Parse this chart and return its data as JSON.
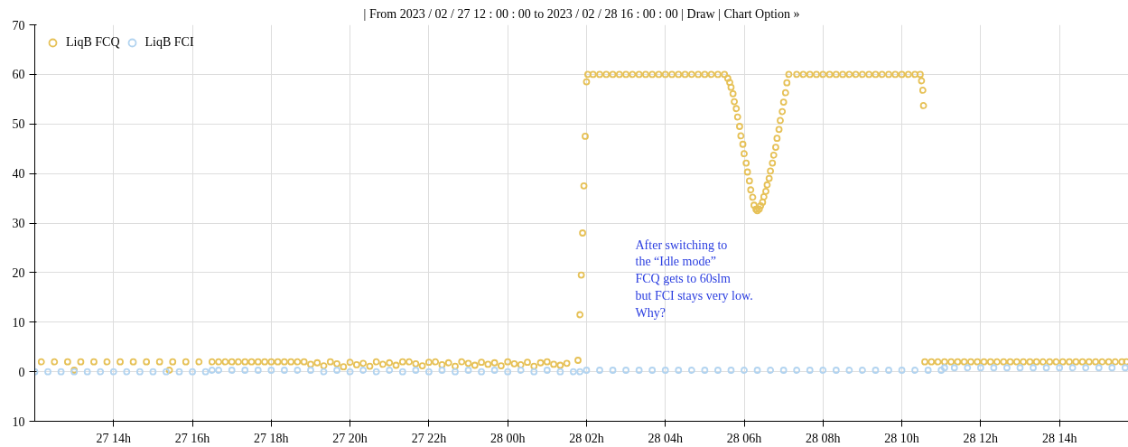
{
  "chart_data": {
    "type": "scatter",
    "annotations": [
      "| From 2023 / 02 / 27 12 : 00 : 00 to 2023 / 02 / 28 16 : 00 : 00 | Draw | Chart Option »",
      "After switching to\nthe “Idle mode”\nFCQ gets to 60slm\nbut FCI stays very low.\nWhy?"
    ],
    "xlim": [
      "2023-02-27T12:00",
      "2023-02-28T15:45"
    ],
    "xticks": [
      {
        "value": "2023-02-27T14:00",
        "label": "27 14h"
      },
      {
        "value": "2023-02-27T16:00",
        "label": "27 16h"
      },
      {
        "value": "2023-02-27T18:00",
        "label": "27 18h"
      },
      {
        "value": "2023-02-27T20:00",
        "label": "27 20h"
      },
      {
        "value": "2023-02-27T22:00",
        "label": "27 22h"
      },
      {
        "value": "2023-02-28T00:00",
        "label": "28 00h"
      },
      {
        "value": "2023-02-28T02:00",
        "label": "28 02h"
      },
      {
        "value": "2023-02-28T04:00",
        "label": "28 04h"
      },
      {
        "value": "2023-02-28T06:00",
        "label": "28 06h"
      },
      {
        "value": "2023-02-28T08:00",
        "label": "28 08h"
      },
      {
        "value": "2023-02-28T10:00",
        "label": "28 10h"
      },
      {
        "value": "2023-02-28T12:00",
        "label": "28 12h"
      },
      {
        "value": "2023-02-28T14:00",
        "label": "28 14h"
      }
    ],
    "ylim": [
      -10,
      70
    ],
    "yticks": [
      {
        "value": -10,
        "label": "10"
      },
      0,
      10,
      20,
      30,
      40,
      50,
      60,
      70
    ],
    "grid": true,
    "legend": "top left",
    "marker": "circle",
    "series": [
      {
        "name": "LiqB FCQ",
        "color": "#e6c157",
        "x": [
          "2023-02-27T12:10",
          "2023-02-27T12:30",
          "2023-02-27T12:50",
          "2023-02-27T13:00",
          "2023-02-27T13:10",
          "2023-02-27T13:30",
          "2023-02-27T13:50",
          "2023-02-27T14:10",
          "2023-02-27T14:30",
          "2023-02-27T14:50",
          "2023-02-27T15:10",
          "2023-02-27T15:25",
          "2023-02-27T15:30",
          "2023-02-27T15:50",
          "2023-02-27T16:10",
          "2023-02-27T16:30",
          "2023-02-27T16:40",
          "2023-02-27T16:50",
          "2023-02-27T17:00",
          "2023-02-27T17:10",
          "2023-02-27T17:20",
          "2023-02-27T17:30",
          "2023-02-27T17:40",
          "2023-02-27T17:50",
          "2023-02-27T18:00",
          "2023-02-27T18:10",
          "2023-02-27T18:20",
          "2023-02-27T18:30",
          "2023-02-27T18:40",
          "2023-02-27T18:50",
          "2023-02-27T19:00",
          "2023-02-27T19:10",
          "2023-02-27T19:20",
          "2023-02-27T19:30",
          "2023-02-27T19:40",
          "2023-02-27T19:50",
          "2023-02-27T20:00",
          "2023-02-27T20:10",
          "2023-02-27T20:20",
          "2023-02-27T20:30",
          "2023-02-27T20:40",
          "2023-02-27T20:50",
          "2023-02-27T21:00",
          "2023-02-27T21:10",
          "2023-02-27T21:20",
          "2023-02-27T21:30",
          "2023-02-27T21:40",
          "2023-02-27T21:50",
          "2023-02-27T22:00",
          "2023-02-27T22:10",
          "2023-02-27T22:20",
          "2023-02-27T22:30",
          "2023-02-27T22:40",
          "2023-02-27T22:50",
          "2023-02-27T23:00",
          "2023-02-27T23:10",
          "2023-02-27T23:20",
          "2023-02-27T23:30",
          "2023-02-27T23:40",
          "2023-02-27T23:50",
          "2023-02-28T00:00",
          "2023-02-28T00:10",
          "2023-02-28T00:20",
          "2023-02-28T00:30",
          "2023-02-28T00:40",
          "2023-02-28T00:50",
          "2023-02-28T01:00",
          "2023-02-28T01:10",
          "2023-02-28T01:20",
          "2023-02-28T01:30",
          "2023-02-28T01:47",
          "2023-02-28T01:50",
          "2023-02-28T01:52",
          "2023-02-28T01:54",
          "2023-02-28T01:56",
          "2023-02-28T01:58",
          "2023-02-28T02:00",
          "2023-02-28T02:02",
          "2023-02-28T02:10",
          "2023-02-28T02:20",
          "2023-02-28T02:30",
          "2023-02-28T02:40",
          "2023-02-28T02:50",
          "2023-02-28T03:00",
          "2023-02-28T03:10",
          "2023-02-28T03:20",
          "2023-02-28T03:30",
          "2023-02-28T03:40",
          "2023-02-28T03:50",
          "2023-02-28T04:00",
          "2023-02-28T04:10",
          "2023-02-28T04:20",
          "2023-02-28T04:30",
          "2023-02-28T04:40",
          "2023-02-28T04:50",
          "2023-02-28T05:00",
          "2023-02-28T05:10",
          "2023-02-28T05:20",
          "2023-02-28T05:30",
          "2023-02-28T05:35",
          "2023-02-28T05:38",
          "2023-02-28T05:40",
          "2023-02-28T05:43",
          "2023-02-28T05:45",
          "2023-02-28T05:48",
          "2023-02-28T05:50",
          "2023-02-28T05:53",
          "2023-02-28T05:55",
          "2023-02-28T05:58",
          "2023-02-28T06:00",
          "2023-02-28T06:03",
          "2023-02-28T06:05",
          "2023-02-28T06:08",
          "2023-02-28T06:10",
          "2023-02-28T06:13",
          "2023-02-28T06:15",
          "2023-02-28T06:18",
          "2023-02-28T06:20",
          "2023-02-28T06:23",
          "2023-02-28T06:25",
          "2023-02-28T06:28",
          "2023-02-28T06:30",
          "2023-02-28T06:33",
          "2023-02-28T06:35",
          "2023-02-28T06:38",
          "2023-02-28T06:40",
          "2023-02-28T06:43",
          "2023-02-28T06:45",
          "2023-02-28T06:48",
          "2023-02-28T06:50",
          "2023-02-28T06:53",
          "2023-02-28T06:55",
          "2023-02-28T06:58",
          "2023-02-28T07:00",
          "2023-02-28T07:03",
          "2023-02-28T07:05",
          "2023-02-28T07:08",
          "2023-02-28T07:20",
          "2023-02-28T07:30",
          "2023-02-28T07:40",
          "2023-02-28T07:50",
          "2023-02-28T08:00",
          "2023-02-28T08:10",
          "2023-02-28T08:20",
          "2023-02-28T08:30",
          "2023-02-28T08:40",
          "2023-02-28T08:50",
          "2023-02-28T09:00",
          "2023-02-28T09:10",
          "2023-02-28T09:20",
          "2023-02-28T09:30",
          "2023-02-28T09:40",
          "2023-02-28T09:50",
          "2023-02-28T10:00",
          "2023-02-28T10:10",
          "2023-02-28T10:20",
          "2023-02-28T10:28",
          "2023-02-28T10:30",
          "2023-02-28T10:32",
          "2023-02-28T10:33",
          "2023-02-28T10:35",
          "2023-02-28T10:45",
          "2023-02-28T10:55",
          "2023-02-28T11:05",
          "2023-02-28T11:15",
          "2023-02-28T11:25",
          "2023-02-28T11:35",
          "2023-02-28T11:45",
          "2023-02-28T11:55",
          "2023-02-28T12:05",
          "2023-02-28T12:15",
          "2023-02-28T12:25",
          "2023-02-28T12:35",
          "2023-02-28T12:45",
          "2023-02-28T12:55",
          "2023-02-28T13:05",
          "2023-02-28T13:15",
          "2023-02-28T13:25",
          "2023-02-28T13:35",
          "2023-02-28T13:45",
          "2023-02-28T13:55",
          "2023-02-28T14:05",
          "2023-02-28T14:15",
          "2023-02-28T14:25",
          "2023-02-28T14:35",
          "2023-02-28T14:45",
          "2023-02-28T14:55",
          "2023-02-28T15:05",
          "2023-02-28T15:15",
          "2023-02-28T15:25",
          "2023-02-28T15:35",
          "2023-02-28T15:42"
        ],
        "values": [
          2,
          2,
          2,
          0.3,
          2,
          2,
          2,
          2,
          2,
          2,
          2,
          0.3,
          2,
          2,
          2,
          2,
          2,
          2,
          2,
          2,
          2,
          2,
          2,
          2,
          2,
          2,
          2,
          2,
          2,
          2,
          1.5,
          1.8,
          1.2,
          2,
          1.6,
          1,
          1.9,
          1.4,
          1.7,
          1.1,
          2,
          1.5,
          1.8,
          1.3,
          2,
          2,
          1.6,
          1.2,
          1.9,
          2,
          1.4,
          1.8,
          1.1,
          2,
          1.7,
          1.3,
          1.9,
          1.5,
          1.8,
          1.2,
          2,
          1.6,
          1.4,
          1.9,
          1.1,
          1.8,
          2,
          1.5,
          1.3,
          1.7,
          2.3,
          11.5,
          19.5,
          28,
          37.5,
          47.5,
          58.5,
          60,
          60,
          60,
          60,
          60,
          60,
          60,
          60,
          60,
          60,
          60,
          60,
          60,
          60,
          60,
          60,
          60,
          60,
          60,
          60,
          60,
          60,
          59.2,
          58.4,
          57.4,
          56.1,
          54.5,
          53.1,
          51.4,
          49.5,
          47.6,
          45.9,
          44,
          42.1,
          40.3,
          38.5,
          36.7,
          35.2,
          33.6,
          32.8,
          32.5,
          32.8,
          33.5,
          34.2,
          35.3,
          36.4,
          37.7,
          39,
          40.5,
          42.1,
          43.7,
          45.3,
          47.1,
          48.9,
          50.7,
          52.5,
          54.4,
          56.3,
          58.3,
          60,
          60,
          60,
          60,
          60,
          60,
          60,
          60,
          60,
          60,
          60,
          60,
          60,
          60,
          60,
          60,
          60,
          60,
          60,
          60,
          60,
          58.7,
          56.8,
          53.7,
          2,
          2,
          2,
          2,
          2,
          2,
          2,
          2,
          2,
          2,
          2,
          2,
          2,
          2,
          2,
          2,
          2,
          2,
          2,
          2,
          2,
          2,
          2,
          2,
          2,
          2,
          2,
          2,
          2,
          2,
          2,
          2
        ]
      },
      {
        "name": "LiqB FCI",
        "color": "#b3d4f0",
        "x": [
          "2023-02-27T12:00",
          "2023-02-27T12:20",
          "2023-02-27T12:40",
          "2023-02-27T13:00",
          "2023-02-27T13:20",
          "2023-02-27T13:40",
          "2023-02-27T14:00",
          "2023-02-27T14:20",
          "2023-02-27T14:40",
          "2023-02-27T15:00",
          "2023-02-27T15:20",
          "2023-02-27T15:40",
          "2023-02-27T16:00",
          "2023-02-27T16:20",
          "2023-02-27T16:30",
          "2023-02-27T16:40",
          "2023-02-27T17:00",
          "2023-02-27T17:20",
          "2023-02-27T17:40",
          "2023-02-27T18:00",
          "2023-02-27T18:20",
          "2023-02-27T18:40",
          "2023-02-27T19:00",
          "2023-02-27T19:20",
          "2023-02-27T19:40",
          "2023-02-27T20:00",
          "2023-02-27T20:20",
          "2023-02-27T20:40",
          "2023-02-27T21:00",
          "2023-02-27T21:20",
          "2023-02-27T21:40",
          "2023-02-27T22:00",
          "2023-02-27T22:20",
          "2023-02-27T22:40",
          "2023-02-27T23:00",
          "2023-02-27T23:20",
          "2023-02-27T23:40",
          "2023-02-28T00:00",
          "2023-02-28T00:20",
          "2023-02-28T00:40",
          "2023-02-28T01:00",
          "2023-02-28T01:20",
          "2023-02-28T01:40",
          "2023-02-28T01:50",
          "2023-02-28T02:00",
          "2023-02-28T02:20",
          "2023-02-28T02:40",
          "2023-02-28T03:00",
          "2023-02-28T03:20",
          "2023-02-28T03:40",
          "2023-02-28T04:00",
          "2023-02-28T04:20",
          "2023-02-28T04:40",
          "2023-02-28T05:00",
          "2023-02-28T05:20",
          "2023-02-28T05:40",
          "2023-02-28T06:00",
          "2023-02-28T06:20",
          "2023-02-28T06:40",
          "2023-02-28T07:00",
          "2023-02-28T07:20",
          "2023-02-28T07:40",
          "2023-02-28T08:00",
          "2023-02-28T08:20",
          "2023-02-28T08:40",
          "2023-02-28T09:00",
          "2023-02-28T09:20",
          "2023-02-28T09:40",
          "2023-02-28T10:00",
          "2023-02-28T10:20",
          "2023-02-28T10:40",
          "2023-02-28T11:00",
          "2023-02-28T11:05",
          "2023-02-28T11:20",
          "2023-02-28T11:40",
          "2023-02-28T12:00",
          "2023-02-28T12:20",
          "2023-02-28T12:40",
          "2023-02-28T13:00",
          "2023-02-28T13:20",
          "2023-02-28T13:40",
          "2023-02-28T14:00",
          "2023-02-28T14:20",
          "2023-02-28T14:40",
          "2023-02-28T15:00",
          "2023-02-28T15:20",
          "2023-02-28T15:40"
        ],
        "values": [
          0,
          0,
          0,
          0,
          0,
          0,
          0,
          0,
          0,
          0,
          0,
          0,
          0,
          0,
          0.3,
          0.3,
          0.3,
          0.3,
          0.3,
          0.3,
          0.3,
          0.3,
          0.3,
          0,
          0.3,
          0,
          0.3,
          0,
          0.3,
          0,
          0.3,
          0,
          0.3,
          0,
          0.3,
          0,
          0.3,
          0,
          0.3,
          0,
          0.3,
          0,
          0,
          0,
          0.3,
          0.3,
          0.3,
          0.3,
          0.3,
          0.3,
          0.3,
          0.3,
          0.3,
          0.3,
          0.3,
          0.3,
          0.3,
          0.3,
          0.3,
          0.3,
          0.3,
          0.3,
          0.3,
          0.3,
          0.3,
          0.3,
          0.3,
          0.3,
          0.3,
          0.3,
          0.3,
          0.3,
          0.8,
          0.8,
          0.8,
          0.8,
          0.8,
          0.8,
          0.8,
          0.8,
          0.8,
          0.8,
          0.8,
          0.8,
          0.8,
          0.8,
          0.8
        ]
      }
    ]
  }
}
